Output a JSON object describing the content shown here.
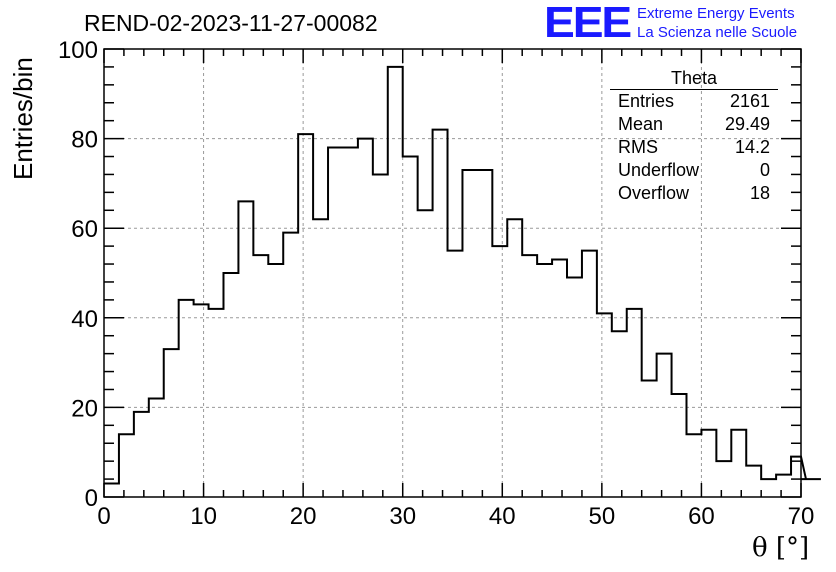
{
  "header": {
    "title": "REND-02-2023-11-27-00082",
    "logo": "EEE",
    "logo_line1": "Extreme Energy Events",
    "logo_line2": "La Scienza nelle Scuole"
  },
  "stats_box": {
    "name": "Theta",
    "rows": [
      {
        "label": "Entries",
        "value": "2161"
      },
      {
        "label": "Mean",
        "value": "29.49"
      },
      {
        "label": "RMS",
        "value": "14.2"
      },
      {
        "label": "Underflow",
        "value": "0"
      },
      {
        "label": "Overflow",
        "value": "18"
      }
    ]
  },
  "chart_data": {
    "type": "histogram",
    "title": "REND-02-2023-11-27-00082",
    "xlabel": "θ [°]",
    "ylabel": "Entries/bin",
    "xlim": [
      0,
      70
    ],
    "ylim": [
      0,
      100
    ],
    "bin_width": 1.5,
    "x_ticks": [
      0,
      10,
      20,
      30,
      40,
      50,
      60,
      70
    ],
    "y_ticks": [
      0,
      20,
      40,
      60,
      80,
      100
    ],
    "grid": true,
    "values": [
      3,
      14,
      19,
      22,
      33,
      44,
      43,
      42,
      50,
      66,
      54,
      52,
      59,
      81,
      62,
      78,
      78,
      80,
      72,
      96,
      76,
      64,
      82,
      55,
      73,
      73,
      56,
      62,
      54,
      52,
      53,
      49,
      55,
      41,
      37,
      42,
      26,
      32,
      23,
      14,
      15,
      8,
      15,
      7,
      4,
      5,
      9,
      4,
      4
    ],
    "line_color": "#000000"
  }
}
